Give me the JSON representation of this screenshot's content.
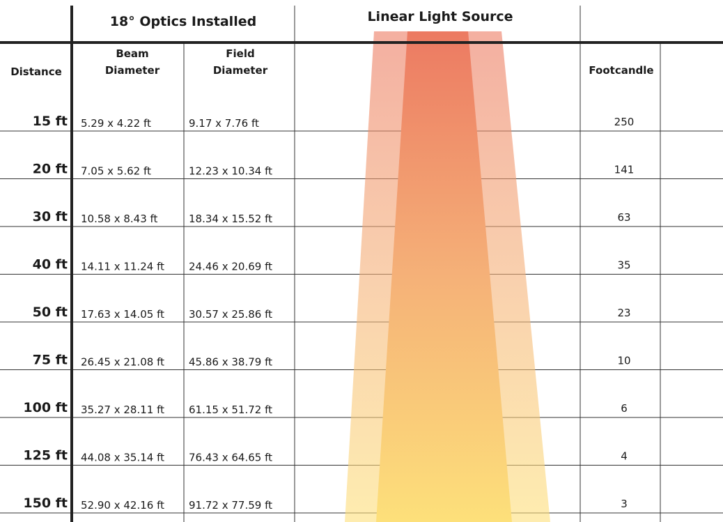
{
  "header": {
    "optics": "18° Optics Installed",
    "source": "Linear Light Source"
  },
  "columns": {
    "distance": "Distance",
    "beam": [
      "Beam",
      "Diameter"
    ],
    "field": [
      "Field",
      "Diameter"
    ],
    "footcandle": "Footcandle"
  },
  "table": {
    "rows": [
      [
        "15 ft",
        "5.29 x 4.22 ft",
        "9.17 x 7.76 ft",
        250
      ],
      [
        "20 ft",
        "7.05 x 5.62 ft",
        "12.23 x 10.34 ft",
        141
      ],
      [
        "30 ft",
        "10.58 x 8.43 ft",
        "18.34 x 15.52 ft",
        63
      ],
      [
        "40 ft",
        "14.11 x 11.24 ft",
        "24.46 x 20.69 ft",
        35
      ],
      [
        "50 ft",
        "17.63 x 14.05 ft",
        "30.57 x 25.86 ft",
        23
      ],
      [
        "75 ft",
        "26.45 x 21.08 ft",
        "45.86 x 38.79 ft",
        10
      ],
      [
        "100 ft",
        "35.27 x 28.11 ft",
        "61.15 x 51.72 ft",
        6
      ],
      [
        "125 ft",
        "44.08 x 35.14 ft",
        "76.43 x 64.65 ft",
        4
      ],
      [
        "150 ft",
        "52.90 x 42.16 ft",
        "91.72 x 77.59 ft",
        3
      ]
    ]
  }
}
